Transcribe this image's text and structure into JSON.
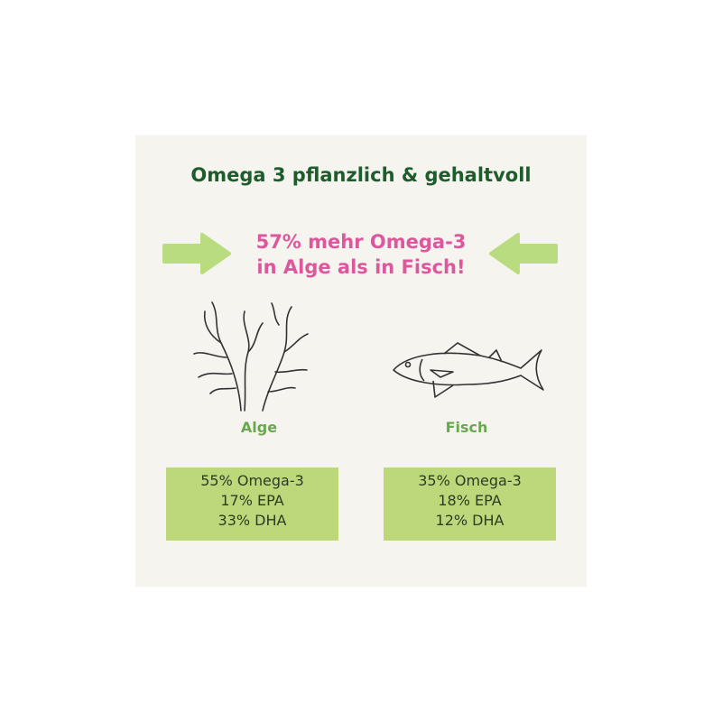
{
  "title": "Omega 3 pflanzlich & gehaltvoll",
  "headline": {
    "line1": "57% mehr Omega-3",
    "line2": "in Alge als in Fisch!"
  },
  "colors": {
    "background": "#f6f4ef",
    "title": "#1d5c2c",
    "headline": "#dd579c",
    "arrow": "#b9dc80",
    "box": "#bdd87b",
    "label": "#6aa84f"
  },
  "left": {
    "icon": "seaweed-icon",
    "label": "Alge",
    "stats": [
      "55% Omega-3",
      "17% EPA",
      "33% DHA"
    ]
  },
  "right": {
    "icon": "fish-icon",
    "label": "Fisch",
    "stats": [
      "35% Omega-3",
      "18% EPA",
      "12% DHA"
    ]
  }
}
